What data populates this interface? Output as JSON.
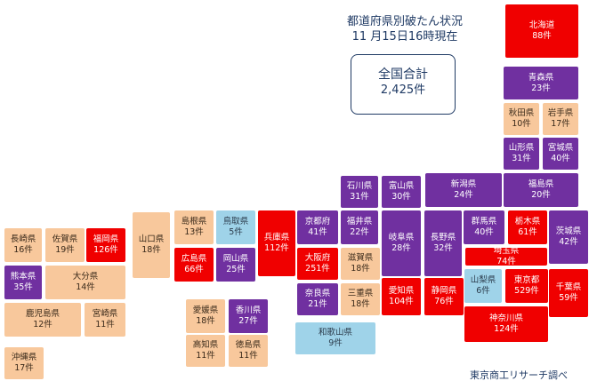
{
  "title": {
    "line1": "都道府県別破たん状況",
    "line2": "11 月15日16時現在"
  },
  "total": {
    "label": "全国合計",
    "value": "2,425件"
  },
  "source": "東京商工リサーチ調べ",
  "colors": {
    "red": "#f00000",
    "purple": "#7030a0",
    "peach": "#f8c89c",
    "blue": "#9fd3e9"
  },
  "chart_data": {
    "type": "table",
    "total": 2425,
    "prefectures": [
      {
        "name": "北海道",
        "count": "88件",
        "cls": "red"
      },
      {
        "name": "青森県",
        "count": "23件",
        "cls": "purple"
      },
      {
        "name": "秋田県",
        "count": "10件",
        "cls": "peach"
      },
      {
        "name": "岩手県",
        "count": "17件",
        "cls": "peach"
      },
      {
        "name": "山形県",
        "count": "31件",
        "cls": "purple"
      },
      {
        "name": "宮城県",
        "count": "40件",
        "cls": "purple"
      },
      {
        "name": "福島県",
        "count": "20件",
        "cls": "purple"
      },
      {
        "name": "新潟県",
        "count": "24件",
        "cls": "purple"
      },
      {
        "name": "石川県",
        "count": "31件",
        "cls": "purple"
      },
      {
        "name": "富山県",
        "count": "30件",
        "cls": "purple"
      },
      {
        "name": "群馬県",
        "count": "40件",
        "cls": "purple"
      },
      {
        "name": "栃木県",
        "count": "61件",
        "cls": "red"
      },
      {
        "name": "茨城県",
        "count": "42件",
        "cls": "purple"
      },
      {
        "name": "埼玉県",
        "count": "74件",
        "cls": "red"
      },
      {
        "name": "長野県",
        "count": "32件",
        "cls": "purple"
      },
      {
        "name": "岐阜県",
        "count": "28件",
        "cls": "purple"
      },
      {
        "name": "福井県",
        "count": "22件",
        "cls": "purple"
      },
      {
        "name": "京都府",
        "count": "41件",
        "cls": "purple"
      },
      {
        "name": "兵庫県",
        "count": "112件",
        "cls": "red"
      },
      {
        "name": "鳥取県",
        "count": "5件",
        "cls": "blue"
      },
      {
        "name": "島根県",
        "count": "13件",
        "cls": "peach"
      },
      {
        "name": "山口県",
        "count": "18件",
        "cls": "peach"
      },
      {
        "name": "広島県",
        "count": "66件",
        "cls": "red"
      },
      {
        "name": "岡山県",
        "count": "25件",
        "cls": "purple"
      },
      {
        "name": "大阪府",
        "count": "251件",
        "cls": "red"
      },
      {
        "name": "滋賀県",
        "count": "18件",
        "cls": "peach"
      },
      {
        "name": "三重県",
        "count": "18件",
        "cls": "peach"
      },
      {
        "name": "奈良県",
        "count": "21件",
        "cls": "purple"
      },
      {
        "name": "愛知県",
        "count": "104件",
        "cls": "red"
      },
      {
        "name": "静岡県",
        "count": "76件",
        "cls": "red"
      },
      {
        "name": "山梨県",
        "count": "6件",
        "cls": "blue"
      },
      {
        "name": "東京都",
        "count": "529件",
        "cls": "red"
      },
      {
        "name": "千葉県",
        "count": "59件",
        "cls": "red"
      },
      {
        "name": "神奈川県",
        "count": "124件",
        "cls": "red"
      },
      {
        "name": "和歌山県",
        "count": "9件",
        "cls": "blue"
      },
      {
        "name": "愛媛県",
        "count": "18件",
        "cls": "peach"
      },
      {
        "name": "香川県",
        "count": "27件",
        "cls": "purple"
      },
      {
        "name": "高知県",
        "count": "11件",
        "cls": "peach"
      },
      {
        "name": "徳島県",
        "count": "11件",
        "cls": "peach"
      },
      {
        "name": "長崎県",
        "count": "16件",
        "cls": "peach"
      },
      {
        "name": "佐賀県",
        "count": "19件",
        "cls": "peach"
      },
      {
        "name": "福岡県",
        "count": "126件",
        "cls": "red"
      },
      {
        "name": "熊本県",
        "count": "35件",
        "cls": "purple"
      },
      {
        "name": "大分県",
        "count": "14件",
        "cls": "peach"
      },
      {
        "name": "鹿児島県",
        "count": "12件",
        "cls": "peach"
      },
      {
        "name": "宮崎県",
        "count": "11件",
        "cls": "peach"
      },
      {
        "name": "沖縄県",
        "count": "17件",
        "cls": "peach"
      }
    ]
  }
}
